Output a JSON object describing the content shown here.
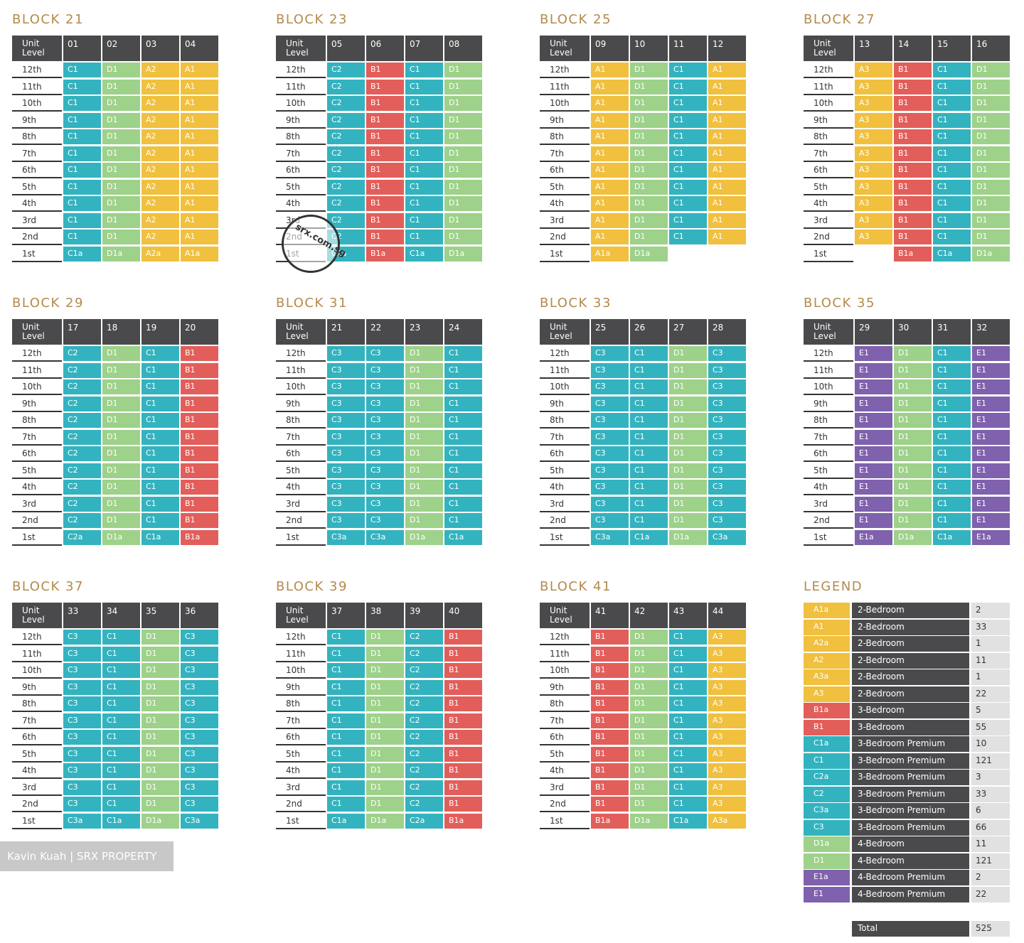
{
  "header": {
    "unit_label": "Unit",
    "level_label": "Level"
  },
  "levels": [
    "12th",
    "11th",
    "10th",
    "9th",
    "8th",
    "7th",
    "6th",
    "5th",
    "4th",
    "3rd",
    "2nd",
    "1st"
  ],
  "type_colors": {
    "A": "#f0c03e",
    "B": "#e25e5a",
    "C": "#33b3bf",
    "D": "#9ed18a",
    "E": "#7f61ad"
  },
  "blocks": [
    {
      "title": "BLOCK 21",
      "units": [
        "01",
        "02",
        "03",
        "04"
      ],
      "typical": [
        "C1",
        "D1",
        "A2",
        "A1"
      ],
      "first": [
        "C1a",
        "D1a",
        "A2a",
        "A1a"
      ]
    },
    {
      "title": "BLOCK 23",
      "units": [
        "05",
        "06",
        "07",
        "08"
      ],
      "typical": [
        "C2",
        "B1",
        "C1",
        "D1"
      ],
      "first": [
        "C2a",
        "B1a",
        "C1a",
        "D1a"
      ]
    },
    {
      "title": "BLOCK 25",
      "units": [
        "09",
        "10",
        "11",
        "12"
      ],
      "typical": [
        "A1",
        "D1",
        "C1",
        "A1"
      ],
      "first": [
        "A1a",
        "D1a",
        "",
        ""
      ]
    },
    {
      "title": "BLOCK 27",
      "units": [
        "13",
        "14",
        "15",
        "16"
      ],
      "typical": [
        "A3",
        "B1",
        "C1",
        "D1"
      ],
      "first": [
        "",
        "B1a",
        "C1a",
        "D1a"
      ]
    },
    {
      "title": "BLOCK 29",
      "units": [
        "17",
        "18",
        "19",
        "20"
      ],
      "typical": [
        "C2",
        "D1",
        "C1",
        "B1"
      ],
      "first": [
        "C2a",
        "D1a",
        "C1a",
        "B1a"
      ]
    },
    {
      "title": "BLOCK 31",
      "units": [
        "21",
        "22",
        "23",
        "24"
      ],
      "typical": [
        "C3",
        "C3",
        "D1",
        "C1"
      ],
      "first": [
        "C3a",
        "C3a",
        "D1a",
        "C1a"
      ]
    },
    {
      "title": "BLOCK 33",
      "units": [
        "25",
        "26",
        "27",
        "28"
      ],
      "typical": [
        "C3",
        "C1",
        "D1",
        "C3"
      ],
      "first": [
        "C3a",
        "C1a",
        "D1a",
        "C3a"
      ]
    },
    {
      "title": "BLOCK 35",
      "units": [
        "29",
        "30",
        "31",
        "32"
      ],
      "typical": [
        "E1",
        "D1",
        "C1",
        "E1"
      ],
      "first": [
        "E1a",
        "D1a",
        "C1a",
        "E1a"
      ]
    },
    {
      "title": "BLOCK 37",
      "units": [
        "33",
        "34",
        "35",
        "36"
      ],
      "typical": [
        "C3",
        "C1",
        "D1",
        "C3"
      ],
      "first": [
        "C3a",
        "C1a",
        "D1a",
        "C3a"
      ]
    },
    {
      "title": "BLOCK 39",
      "units": [
        "37",
        "38",
        "39",
        "40"
      ],
      "typical": [
        "C1",
        "D1",
        "C2",
        "B1"
      ],
      "first": [
        "C1a",
        "D1a",
        "C2a",
        "B1a"
      ]
    },
    {
      "title": "BLOCK 41",
      "units": [
        "41",
        "42",
        "43",
        "44"
      ],
      "typical": [
        "B1",
        "D1",
        "C1",
        "A3"
      ],
      "first": [
        "B1a",
        "D1a",
        "C1a",
        "A3a"
      ]
    }
  ],
  "legend": {
    "title": "LEGEND",
    "items": [
      {
        "code": "A1a",
        "desc": "2-Bedroom",
        "count": "2"
      },
      {
        "code": "A1",
        "desc": "2-Bedroom",
        "count": "33"
      },
      {
        "code": "A2a",
        "desc": "2-Bedroom",
        "count": "1"
      },
      {
        "code": "A2",
        "desc": "2-Bedroom",
        "count": "11"
      },
      {
        "code": "A3a",
        "desc": "2-Bedroom",
        "count": "1"
      },
      {
        "code": "A3",
        "desc": "2-Bedroom",
        "count": "22"
      },
      {
        "code": "B1a",
        "desc": "3-Bedroom",
        "count": "5"
      },
      {
        "code": "B1",
        "desc": "3-Bedroom",
        "count": "55"
      },
      {
        "code": "C1a",
        "desc": "3-Bedroom Premium",
        "count": "10"
      },
      {
        "code": "C1",
        "desc": "3-Bedroom Premium",
        "count": "121"
      },
      {
        "code": "C2a",
        "desc": "3-Bedroom Premium",
        "count": "3"
      },
      {
        "code": "C2",
        "desc": "3-Bedroom Premium",
        "count": "33"
      },
      {
        "code": "C3a",
        "desc": "3-Bedroom Premium",
        "count": "6"
      },
      {
        "code": "C3",
        "desc": "3-Bedroom Premium",
        "count": "66"
      },
      {
        "code": "D1a",
        "desc": "4-Bedroom",
        "count": "11"
      },
      {
        "code": "D1",
        "desc": "4-Bedroom",
        "count": "121"
      },
      {
        "code": "E1a",
        "desc": "4-Bedroom Premium",
        "count": "2"
      },
      {
        "code": "E1",
        "desc": "4-Bedroom Premium",
        "count": "22"
      }
    ],
    "total_label": "Total",
    "total_count": "525"
  },
  "watermark": {
    "stamp_text": "srx.com.sg"
  },
  "credit": "Kavin Kuah | SRX PROPERTY"
}
